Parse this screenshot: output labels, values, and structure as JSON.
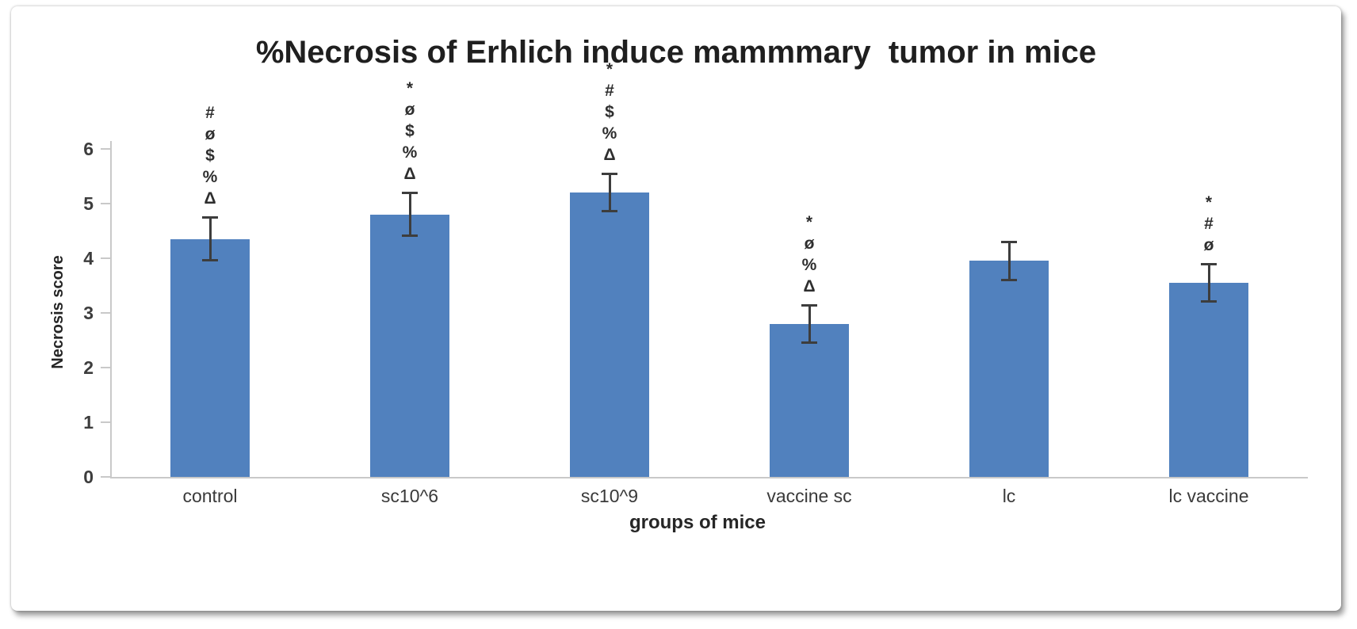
{
  "chart_data": {
    "type": "bar",
    "title": "%Necrosis of Erhlich induce mammmary  tumor in mice",
    "xlabel": "groups of mice",
    "ylabel": "Necrosis score",
    "categories": [
      "control",
      "sc10^6",
      "sc10^9",
      "vaccine sc",
      "lc",
      "lc vaccine"
    ],
    "values": [
      4.35,
      4.8,
      5.2,
      2.8,
      3.95,
      3.55
    ],
    "error_bars": [
      0.4,
      0.4,
      0.35,
      0.35,
      0.35,
      0.35
    ],
    "significance_symbols": [
      [
        "#",
        "ø",
        "$",
        "%",
        "Δ"
      ],
      [
        "*",
        "ø",
        "$",
        "%",
        "Δ"
      ],
      [
        "*",
        "#",
        "$",
        "%",
        "Δ"
      ],
      [
        "*",
        "ø",
        "%",
        "Δ"
      ],
      [],
      [
        "*",
        "#",
        "ø"
      ]
    ],
    "ylim": [
      0,
      6
    ],
    "yticks": [
      0,
      1,
      2,
      3,
      4,
      5,
      6
    ],
    "grid": false,
    "legend": false,
    "bar_color": "#5181BE",
    "error_bar_color": "#3d3d3d",
    "axis_color": "#c9c9c9"
  }
}
